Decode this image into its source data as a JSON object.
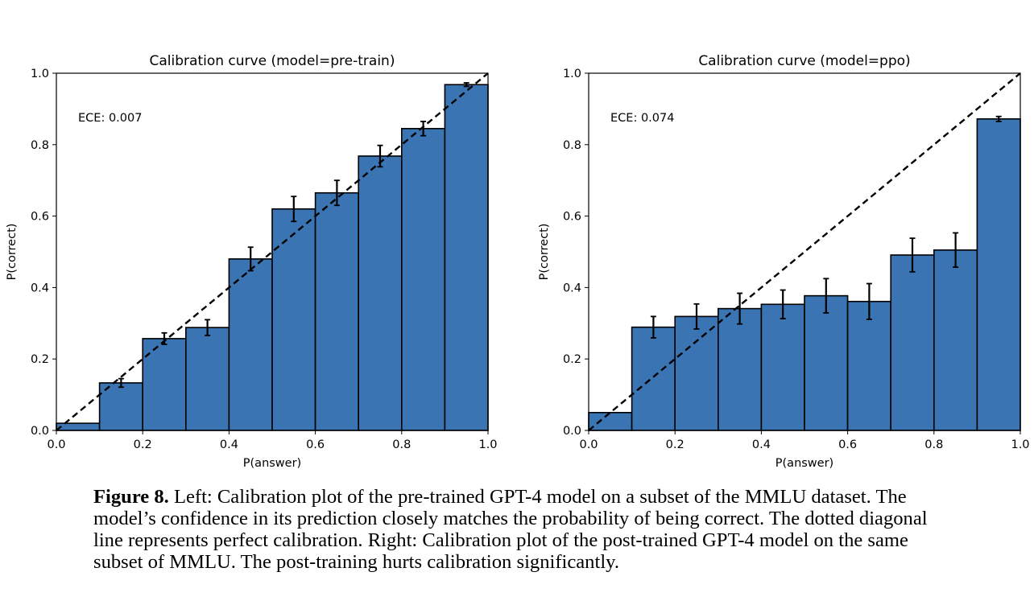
{
  "chart_data": [
    {
      "type": "bar",
      "title": "Calibration curve (model=pre-train)",
      "xlabel": "P(answer)",
      "ylabel": "P(correct)",
      "annotation": "ECE: 0.007",
      "xlim": [
        0,
        1
      ],
      "ylim": [
        0,
        1
      ],
      "xticks": [
        "0.0",
        "0.2",
        "0.4",
        "0.6",
        "0.8",
        "1.0"
      ],
      "yticks": [
        "0.0",
        "0.2",
        "0.4",
        "0.6",
        "0.8",
        "1.0"
      ],
      "bins": [
        [
          0.0,
          0.1
        ],
        [
          0.1,
          0.2
        ],
        [
          0.2,
          0.3
        ],
        [
          0.3,
          0.4
        ],
        [
          0.4,
          0.5
        ],
        [
          0.5,
          0.6
        ],
        [
          0.6,
          0.7
        ],
        [
          0.7,
          0.8
        ],
        [
          0.8,
          0.9
        ],
        [
          0.9,
          1.0
        ]
      ],
      "values": [
        0.02,
        0.133,
        0.257,
        0.288,
        0.48,
        0.62,
        0.665,
        0.768,
        0.845,
        0.968
      ],
      "error": [
        0.0,
        0.012,
        0.016,
        0.022,
        0.033,
        0.035,
        0.035,
        0.03,
        0.02,
        0.005
      ],
      "reference_line": "diagonal",
      "grid": false
    },
    {
      "type": "bar",
      "title": "Calibration curve (model=ppo)",
      "xlabel": "P(answer)",
      "ylabel": "P(correct)",
      "annotation": "ECE: 0.074",
      "xlim": [
        0,
        1
      ],
      "ylim": [
        0,
        1
      ],
      "xticks": [
        "0.0",
        "0.2",
        "0.4",
        "0.6",
        "0.8",
        "1.0"
      ],
      "yticks": [
        "0.0",
        "0.2",
        "0.4",
        "0.6",
        "0.8",
        "1.0"
      ],
      "bins": [
        [
          0.0,
          0.1
        ],
        [
          0.1,
          0.2
        ],
        [
          0.2,
          0.3
        ],
        [
          0.3,
          0.4
        ],
        [
          0.4,
          0.5
        ],
        [
          0.5,
          0.6
        ],
        [
          0.6,
          0.7
        ],
        [
          0.7,
          0.8
        ],
        [
          0.8,
          0.9
        ],
        [
          0.9,
          1.0
        ]
      ],
      "values": [
        0.05,
        0.289,
        0.319,
        0.341,
        0.353,
        0.377,
        0.361,
        0.491,
        0.505,
        0.872
      ],
      "error": [
        0.0,
        0.03,
        0.035,
        0.043,
        0.04,
        0.048,
        0.05,
        0.047,
        0.048,
        0.007
      ],
      "reference_line": "diagonal",
      "grid": false
    }
  ],
  "colors": {
    "bar_fill": "#3b74b2",
    "bar_edge": "#000000",
    "error_bar": "#000000",
    "diagonal": "#000000"
  },
  "caption": {
    "label": "Figure 8.",
    "text": " Left: Calibration plot of the pre-trained GPT-4 model on a subset of the MMLU dataset. The model’s confidence in its prediction closely matches the probability of being correct. The dotted diagonal line represents perfect calibration. Right: Calibration plot of the post-trained GPT-4 model on the same subset of MMLU. The post-training hurts calibration significantly."
  }
}
